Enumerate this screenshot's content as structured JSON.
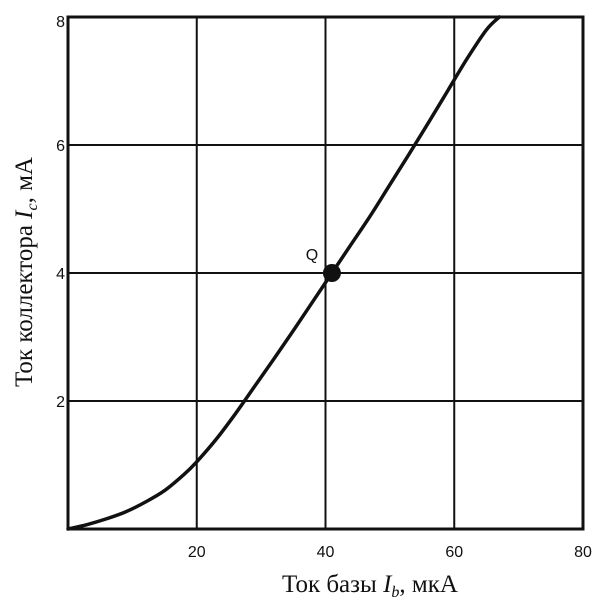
{
  "chart_data": {
    "type": "line",
    "title": "",
    "xlabel": {
      "prefix": "Ток базы ",
      "symbol": "I",
      "subscript": "b",
      "suffix": ", мкА"
    },
    "ylabel": {
      "prefix": "Ток коллектора ",
      "symbol": "I",
      "subscript": "c",
      "suffix": ", мА"
    },
    "xlim": [
      0,
      80
    ],
    "ylim": [
      0,
      8
    ],
    "x_ticks": [
      20,
      40,
      60,
      80
    ],
    "x_tick_labels": [
      "20",
      "40",
      "60",
      "80"
    ],
    "y_ticks": [
      2,
      4,
      6,
      8
    ],
    "y_tick_labels": [
      "2",
      "4",
      "6",
      "8"
    ],
    "grid": true,
    "series": [
      {
        "x": [
          0,
          3,
          6,
          9,
          12,
          15,
          18,
          20,
          23,
          26,
          29,
          32,
          35,
          38,
          41,
          44,
          47,
          50,
          53,
          56,
          59,
          62,
          65,
          67
        ],
        "y": [
          0,
          0.07,
          0.16,
          0.27,
          0.42,
          0.6,
          0.85,
          1.05,
          1.4,
          1.8,
          2.23,
          2.66,
          3.1,
          3.55,
          4.0,
          4.45,
          4.9,
          5.38,
          5.86,
          6.35,
          6.85,
          7.35,
          7.8,
          8.0
        ]
      }
    ],
    "annotations": [
      {
        "label": "Q",
        "x": 41,
        "y": 4.0
      }
    ],
    "line_color": "#111111",
    "grid_color": "#111111"
  }
}
